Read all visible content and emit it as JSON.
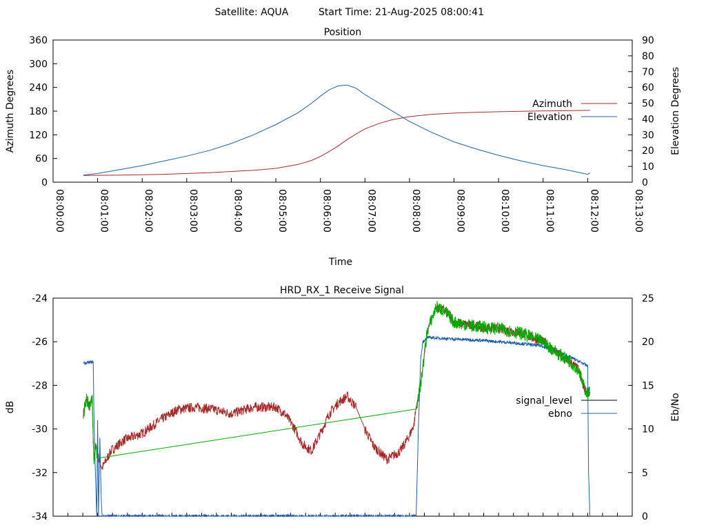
{
  "header": {
    "satellite_label": "Satellite: AQUA",
    "start_label": "Start Time: 21-Aug-2025 08:00:41"
  },
  "colors": {
    "azimuth": "#a52a2a",
    "elevation": "#1f5fa8",
    "signal_level": "#000000",
    "ebno": "#1f5fa8",
    "signal_green": "#00aa00"
  },
  "chart_data": [
    {
      "type": "line",
      "title": "Position",
      "xlabel": "Time",
      "ylabel": "Azimuth Degrees",
      "y2label": "Elevation Degrees",
      "ylim": [
        0,
        360
      ],
      "y2lim": [
        0,
        90
      ],
      "yticks": [
        "0",
        "60",
        "120",
        "180",
        "240",
        "300",
        "360"
      ],
      "y2ticks": [
        "0",
        "10",
        "20",
        "30",
        "40",
        "50",
        "60",
        "70",
        "80",
        "90"
      ],
      "xticks": [
        "08:00:00",
        "08:01:00",
        "08:02:00",
        "08:03:00",
        "08:04:00",
        "08:05:00",
        "08:06:00",
        "08:07:00",
        "08:08:00",
        "08:09:00",
        "08:10:00",
        "08:11:00",
        "08:12:00",
        "08:13:00"
      ],
      "xlim_min": [
        0,
        13
      ],
      "legend_position": "right",
      "series": [
        {
          "name": "Azimuth",
          "axis": "left",
          "x_min": [
            0.68,
            1.5,
            2.5,
            3.5,
            4.5,
            5.0,
            5.5,
            5.8,
            6.0,
            6.2,
            6.4,
            6.6,
            6.8,
            7.0,
            7.3,
            7.6,
            8.0,
            8.5,
            9.0,
            9.5,
            10.0,
            10.5,
            11.0,
            11.5,
            12.05
          ],
          "values": [
            17,
            18,
            20,
            24,
            30,
            35,
            45,
            55,
            65,
            78,
            92,
            108,
            122,
            135,
            148,
            158,
            166,
            172,
            175,
            177,
            178.5,
            179.5,
            180.5,
            181,
            182
          ]
        },
        {
          "name": "Elevation",
          "axis": "right",
          "x_min": [
            0.68,
            1.0,
            1.5,
            2.0,
            2.5,
            3.0,
            3.5,
            4.0,
            4.5,
            5.0,
            5.5,
            5.8,
            6.0,
            6.2,
            6.4,
            6.6,
            6.8,
            7.0,
            7.5,
            8.0,
            8.5,
            9.0,
            9.5,
            10.0,
            10.5,
            11.0,
            11.5,
            12.0,
            12.05
          ],
          "values": [
            4.5,
            5.5,
            8,
            10.5,
            13.5,
            16.5,
            20,
            24.5,
            30,
            36.5,
            44,
            50,
            54.5,
            58.5,
            61,
            61.5,
            59.5,
            55.5,
            47,
            38.5,
            31.5,
            25.5,
            21,
            17,
            13.5,
            10.5,
            8,
            5,
            6
          ]
        }
      ]
    },
    {
      "type": "line",
      "title": "HRD_RX_1 Receive Signal",
      "ylabel": "dB",
      "y2label": "Eb/No",
      "ylim": [
        -34,
        -24
      ],
      "y2lim": [
        0,
        25
      ],
      "yticks": [
        "-34",
        "-32",
        "-30",
        "-28",
        "-26",
        "-24"
      ],
      "y2ticks": [
        "0",
        "5",
        "10",
        "15",
        "20",
        "25"
      ],
      "xlim_min": [
        0,
        13
      ],
      "legend_position": "right",
      "series": [
        {
          "name": "signal_level",
          "axis": "left",
          "x_min": [
            0.68,
            0.75,
            0.82,
            0.88,
            0.9,
            0.92,
            0.95,
            1.0,
            1.1,
            1.3,
            1.6,
            2.0,
            2.4,
            2.8,
            3.2,
            3.6,
            4.0,
            4.5,
            4.8,
            5.0,
            5.2,
            5.4,
            5.6,
            5.8,
            6.0,
            6.2,
            6.4,
            6.6,
            6.8,
            7.0,
            7.2,
            7.5,
            7.8,
            8.0,
            8.1,
            8.15,
            8.25,
            8.4,
            8.6,
            8.8,
            9.0,
            9.5,
            10.0,
            10.5,
            11.0,
            11.3,
            11.6,
            11.8,
            11.9,
            12.0,
            12.05
          ],
          "values": [
            -29.3,
            -28.6,
            -29.0,
            -28.6,
            -30.5,
            -31.5,
            -30.8,
            -31.2,
            -31.8,
            -31.0,
            -30.5,
            -30.2,
            -29.6,
            -29.1,
            -29.0,
            -29.1,
            -29.3,
            -29.0,
            -29.0,
            -29.0,
            -29.3,
            -29.9,
            -30.7,
            -31.0,
            -30.2,
            -29.3,
            -28.8,
            -28.5,
            -29.0,
            -30.0,
            -30.8,
            -31.4,
            -31.0,
            -30.3,
            -29.8,
            -29.0,
            -28.0,
            -25.5,
            -24.4,
            -24.6,
            -25.1,
            -25.3,
            -25.4,
            -25.6,
            -26.0,
            -26.5,
            -26.9,
            -27.3,
            -28.0,
            -28.4,
            -28.3
          ]
        },
        {
          "name": "ebno",
          "axis": "right",
          "x_min": [
            0.68,
            0.9,
            0.92,
            0.95,
            0.98,
            1.0,
            1.02,
            1.05,
            1.08,
            1.1,
            1.3,
            2.0,
            4.0,
            6.0,
            8.0,
            8.15,
            8.2,
            8.25,
            8.3,
            8.4,
            9.0,
            9.5,
            10.0,
            10.5,
            11.0,
            11.5,
            11.9,
            12.0,
            12.02,
            12.05
          ],
          "values": [
            17.5,
            17.7,
            11,
            5,
            0,
            11,
            0,
            9,
            2,
            0,
            0,
            0,
            0,
            0,
            0,
            0,
            10,
            18,
            20,
            20.5,
            20.3,
            20.2,
            20.0,
            19.8,
            19.5,
            18.5,
            17.5,
            17.2,
            5,
            0
          ]
        }
      ]
    }
  ]
}
